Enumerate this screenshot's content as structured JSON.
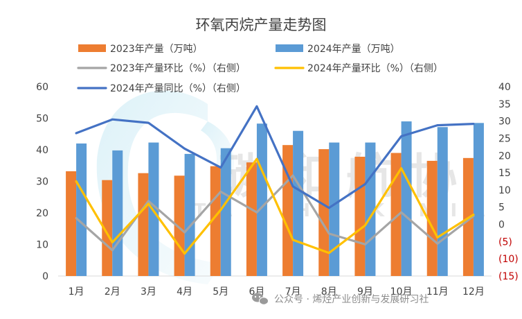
{
  "chart_data": {
    "type": "bar",
    "title": "环氧丙烷产量走势图",
    "categories": [
      "1月",
      "2月",
      "3月",
      "4月",
      "5月",
      "6月",
      "7月",
      "8月",
      "9月",
      "10月",
      "11月",
      "12月"
    ],
    "y_left": {
      "range": [
        0,
        60
      ],
      "ticks": [
        "0",
        "10",
        "20",
        "30",
        "40",
        "50",
        "60"
      ]
    },
    "y_right": {
      "range": [
        -15,
        40
      ],
      "ticks": [
        "(15)",
        "(10)",
        "(5)",
        "0",
        "5",
        "10",
        "15",
        "20",
        "25",
        "30",
        "35",
        "40"
      ]
    },
    "series": [
      {
        "name": "2023年产量（万吨）",
        "type": "bar",
        "axis": "left",
        "color": "#ed7d31",
        "values": [
          33.2,
          30.4,
          32.6,
          31.8,
          34.8,
          36.0,
          41.5,
          40.2,
          37.8,
          39.0,
          36.5,
          37.4
        ]
      },
      {
        "name": "2024年产量（万吨）",
        "type": "bar",
        "axis": "left",
        "color": "#5b9bd5",
        "values": [
          42.0,
          39.8,
          42.3,
          38.7,
          40.5,
          48.3,
          46.0,
          42.3,
          42.3,
          49.0,
          47.2,
          48.5
        ]
      },
      {
        "name": "2023年产量环比（%）（右侧）",
        "type": "line",
        "axis": "right",
        "color": "#a5a5a5",
        "values": [
          1.8,
          -7.5,
          6.8,
          -2.3,
          9.5,
          3.5,
          14.2,
          -2.7,
          -5.8,
          3.5,
          -5.6,
          2.4
        ]
      },
      {
        "name": "2024年产量环比（%）（右侧）",
        "type": "line",
        "axis": "right",
        "color": "#ffc000",
        "values": [
          12.5,
          -5.2,
          6.0,
          -8.5,
          4.2,
          19.0,
          -4.5,
          -8.3,
          -0.3,
          16.3,
          -3.8,
          2.8
        ]
      },
      {
        "name": "2024年产量同比（%）（右侧）",
        "type": "line",
        "axis": "right",
        "color": "#4472c4",
        "values": [
          26.5,
          30.5,
          29.5,
          22.0,
          16.5,
          34.3,
          11.0,
          4.8,
          11.7,
          25.6,
          28.8,
          29.2
        ]
      }
    ],
    "legend_position": "top",
    "grid": false
  },
  "watermark": {
    "text": "公众号 · 烯烃产业创新与发展研习社",
    "logo_text": "碳和航协",
    "logo_subtext": "TAN HE KIMIA"
  }
}
